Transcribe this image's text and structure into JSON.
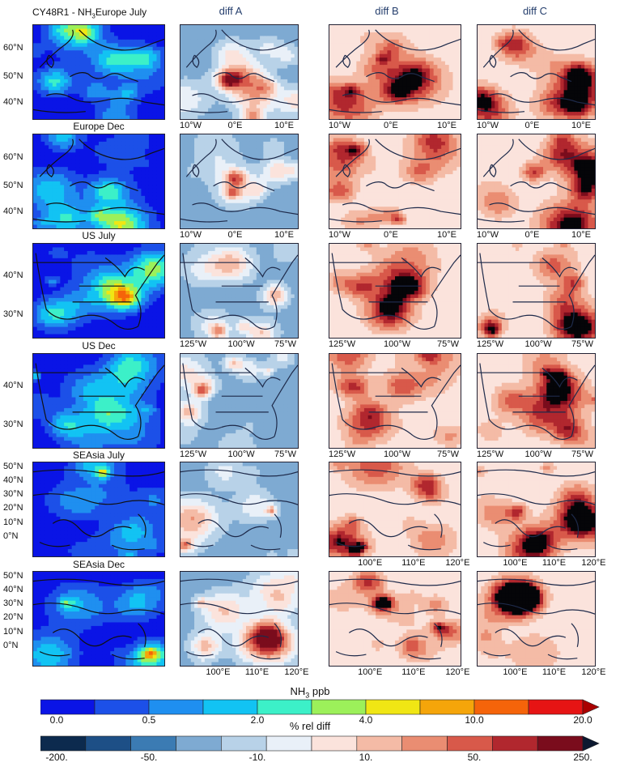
{
  "header": {
    "main_title_prefix": "CY48R1 - NH",
    "main_title_sub": "3",
    "main_title_suffix": "Europe July"
  },
  "columns": [
    "diff A",
    "diff B",
    "diff C"
  ],
  "rows": [
    {
      "id": "eu-jul",
      "title": "",
      "region": "europe",
      "lat_ticks": [
        "60°N",
        "50°N",
        "40°N"
      ],
      "lon_ticks": [
        "10°W",
        "0°E",
        "10°E"
      ]
    },
    {
      "id": "eu-dec",
      "title": "Europe Dec",
      "region": "europe",
      "lat_ticks": [
        "60°N",
        "50°N",
        "40°N"
      ],
      "lon_ticks": [
        "10°W",
        "0°E",
        "10°E"
      ]
    },
    {
      "id": "us-jul",
      "title": "US July",
      "region": "us",
      "lat_ticks": [
        "40°N",
        "30°N"
      ],
      "lon_ticks": [
        "125°W",
        "100°W",
        "75°W"
      ]
    },
    {
      "id": "us-dec",
      "title": "US Dec",
      "region": "us",
      "lat_ticks": [
        "40°N",
        "30°N"
      ],
      "lon_ticks": [
        "125°W",
        "100°W",
        "75°W"
      ]
    },
    {
      "id": "as-jul",
      "title": "SEAsia July",
      "region": "asia",
      "lat_ticks": [
        "50°N",
        "40°N",
        "30°N",
        "20°N",
        "10°N",
        "0°N"
      ],
      "lon_ticks": [
        "100°E",
        "110°E",
        "120°E"
      ]
    },
    {
      "id": "as-dec",
      "title": "SEAsia Dec",
      "region": "asia",
      "lat_ticks": [
        "50°N",
        "40°N",
        "30°N",
        "20°N",
        "10°N",
        "0°N"
      ],
      "lon_ticks": [
        "100°E",
        "110°E",
        "120°E"
      ]
    }
  ],
  "colorbars": {
    "nh3": {
      "title_prefix": "NH",
      "title_sub": "3",
      "title_suffix": " ppb",
      "labels": [
        "0.0",
        "0.5",
        "2.0",
        "4.0",
        "10.0",
        "20.0"
      ],
      "colors": [
        "#0a14e6",
        "#1c50e8",
        "#1f8ff0",
        "#12c3f3",
        "#3cf0c8",
        "#9cf05a",
        "#f0e614",
        "#f5a50a",
        "#f5640a",
        "#e61414"
      ],
      "extend_color": "#aa0000"
    },
    "reldiff": {
      "title": "% rel diff",
      "labels": [
        "-200.",
        "-50.",
        "-10.",
        "10.",
        "50.",
        "250."
      ],
      "colors": [
        "#0c2a4e",
        "#1d4f86",
        "#3b7bb3",
        "#7eaad2",
        "#b8d2e8",
        "#e9f0f8",
        "#fbe3dc",
        "#f4bba6",
        "#ea8d72",
        "#d8594a",
        "#b1272e",
        "#7a0c1c"
      ],
      "extend_color": "#0c1830"
    }
  }
}
